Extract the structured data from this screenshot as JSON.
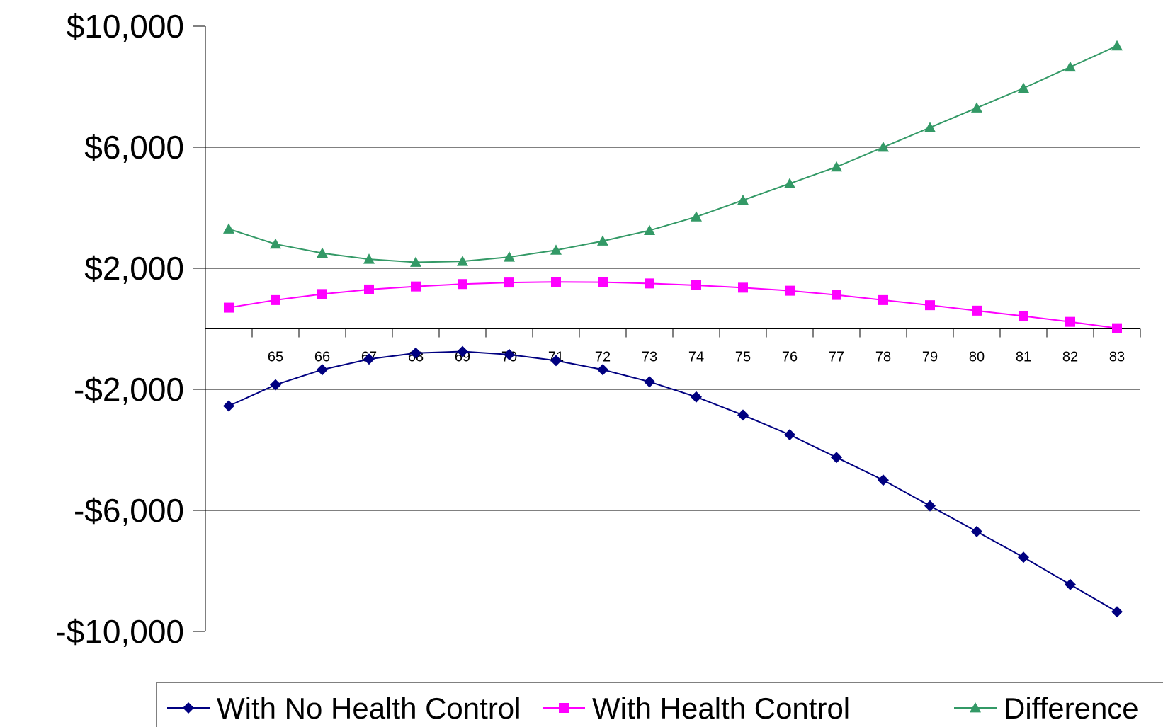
{
  "chart_data": {
    "type": "line",
    "title": "",
    "xlabel": "",
    "ylabel": "",
    "x": [
      64,
      65,
      66,
      67,
      68,
      69,
      70,
      71,
      72,
      73,
      74,
      75,
      76,
      77,
      78,
      79,
      80,
      81,
      82,
      83
    ],
    "x_tick_labels": [
      "65",
      "66",
      "67",
      "68",
      "69",
      "70",
      "71",
      "72",
      "73",
      "74",
      "75",
      "76",
      "77",
      "78",
      "79",
      "80",
      "81",
      "82",
      "83"
    ],
    "ylim": [
      -10000,
      10000
    ],
    "y_ticks": [
      10000,
      6000,
      2000,
      -2000,
      -6000,
      -10000
    ],
    "y_tick_labels": [
      "$10,000",
      "$6,000",
      "$2,000",
      "-$2,000",
      "-$6,000",
      "-$10,000"
    ],
    "grid": true,
    "legend_position": "bottom",
    "series": [
      {
        "name": "With No Health Control",
        "color": "#000080",
        "marker": "diamond",
        "values": [
          -2550,
          -1850,
          -1350,
          -1000,
          -800,
          -750,
          -850,
          -1050,
          -1350,
          -1750,
          -2250,
          -2850,
          -3500,
          -4250,
          -5000,
          -5850,
          -6700,
          -7550,
          -8450,
          -9350
        ]
      },
      {
        "name": "With Health Control",
        "color": "#ff00ff",
        "marker": "square",
        "values": [
          700,
          950,
          1150,
          1300,
          1400,
          1480,
          1530,
          1550,
          1540,
          1500,
          1440,
          1360,
          1260,
          1120,
          950,
          780,
          600,
          420,
          230,
          20
        ]
      },
      {
        "name": "Difference",
        "color": "#339966",
        "marker": "triangle",
        "values": [
          3300,
          2800,
          2500,
          2300,
          2200,
          2230,
          2370,
          2600,
          2900,
          3250,
          3700,
          4250,
          4800,
          5350,
          6000,
          6650,
          7300,
          7950,
          8650,
          9350
        ]
      }
    ]
  }
}
